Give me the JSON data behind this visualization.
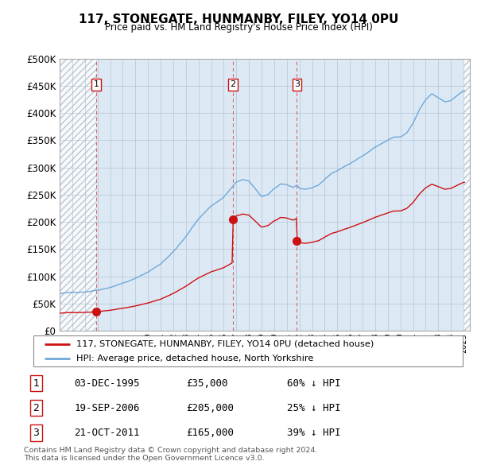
{
  "title": "117, STONEGATE, HUNMANBY, FILEY, YO14 0PU",
  "subtitle": "Price paid vs. HM Land Registry's House Price Index (HPI)",
  "ylim": [
    0,
    500000
  ],
  "yticks": [
    0,
    50000,
    100000,
    150000,
    200000,
    250000,
    300000,
    350000,
    400000,
    450000,
    500000
  ],
  "ytick_labels": [
    "£0",
    "£50K",
    "£100K",
    "£150K",
    "£200K",
    "£250K",
    "£300K",
    "£350K",
    "£400K",
    "£450K",
    "£500K"
  ],
  "xlim_start": 1993.0,
  "xlim_end": 2025.5,
  "hpi_color": "#6fa8d8",
  "price_color": "#cc1111",
  "vline_color": "#dd5555",
  "chart_bg_color": "#dce9f5",
  "hatch_color": "#b0b8c8",
  "grid_color": "#aabbcc",
  "transactions": [
    {
      "num": 1,
      "date_str": "03-DEC-1995",
      "year": 1995.92,
      "price": 35000
    },
    {
      "num": 2,
      "date_str": "19-SEP-2006",
      "year": 2006.72,
      "price": 205000
    },
    {
      "num": 3,
      "date_str": "21-OCT-2011",
      "year": 2011.8,
      "price": 165000
    }
  ],
  "legend_line1": "117, STONEGATE, HUNMANBY, FILEY, YO14 0PU (detached house)",
  "legend_line2": "HPI: Average price, detached house, North Yorkshire",
  "table_rows": [
    [
      "1",
      "03-DEC-1995",
      "£35,000",
      "60% ↓ HPI"
    ],
    [
      "2",
      "19-SEP-2006",
      "£205,000",
      "25% ↓ HPI"
    ],
    [
      "3",
      "21-OCT-2011",
      "£165,000",
      "39% ↓ HPI"
    ]
  ],
  "footer": "Contains HM Land Registry data © Crown copyright and database right 2024.\nThis data is licensed under the Open Government Licence v3.0."
}
